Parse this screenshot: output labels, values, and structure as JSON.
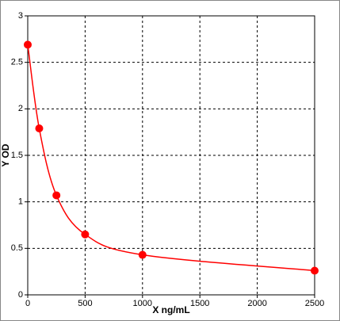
{
  "chart_data": {
    "type": "line",
    "xlabel": "X ng/mL",
    "ylabel": "Y OD",
    "series": [
      {
        "color": "#ff0000",
        "x": [
          0,
          100,
          250,
          500,
          1000,
          2500
        ],
        "values": [
          2.69,
          1.79,
          1.07,
          0.65,
          0.43,
          0.26
        ]
      }
    ],
    "xlim": [
      0,
      2500
    ],
    "xticks": [
      0,
      500,
      1000,
      1500,
      2000,
      2500
    ],
    "ylim": [
      0,
      3
    ],
    "yticks": [
      0,
      0.5,
      1,
      1.5,
      2,
      2.5,
      3
    ],
    "grid": true
  }
}
